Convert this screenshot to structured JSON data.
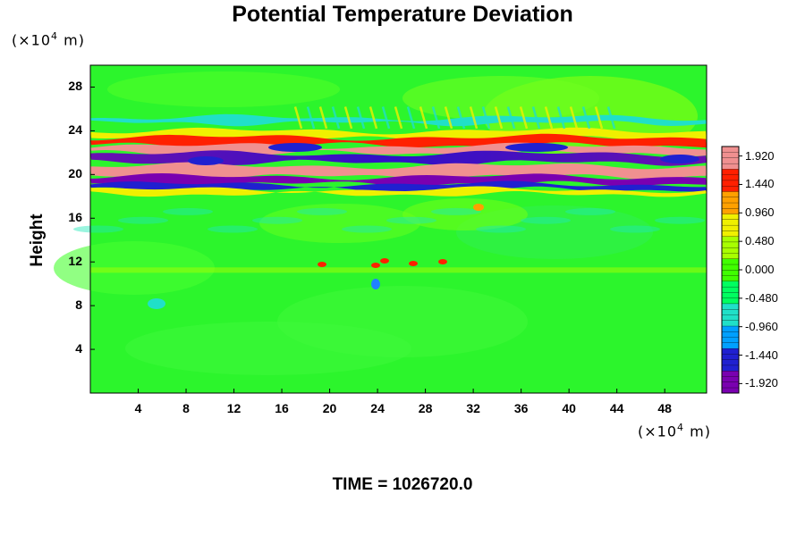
{
  "chart_data": {
    "type": "heatmap",
    "title": "Potential Temperature Deviation",
    "ylabel": "Height",
    "xunit_prefix": "(×10",
    "xunit_exp": "4",
    "xunit_suffix": " m)",
    "yunit_prefix": "(×10",
    "yunit_exp": "4",
    "yunit_suffix": " m)",
    "xlim": [
      0,
      51.5
    ],
    "ylim": [
      0,
      30
    ],
    "x_ticks": [
      "4",
      "8",
      "12",
      "16",
      "20",
      "24",
      "28",
      "32",
      "36",
      "40",
      "44",
      "48"
    ],
    "y_ticks": [
      "4",
      "8",
      "12",
      "16",
      "20",
      "24",
      "28"
    ],
    "colorbar": {
      "min": -2.08,
      "max": 2.08,
      "labels": [
        "1.920",
        "1.440",
        "0.960",
        "0.480",
        "0.000",
        "-0.480",
        "-0.960",
        "-1.440",
        "-1.920"
      ],
      "colors": [
        "#7a00b0",
        "#2020d0",
        "#00a0ff",
        "#20e0c8",
        "#00ff60",
        "#40ff00",
        "#a8ff00",
        "#f0f000",
        "#ffa000",
        "#ff2000",
        "#f09090"
      ]
    },
    "time_label": "TIME = 1026720.0"
  }
}
